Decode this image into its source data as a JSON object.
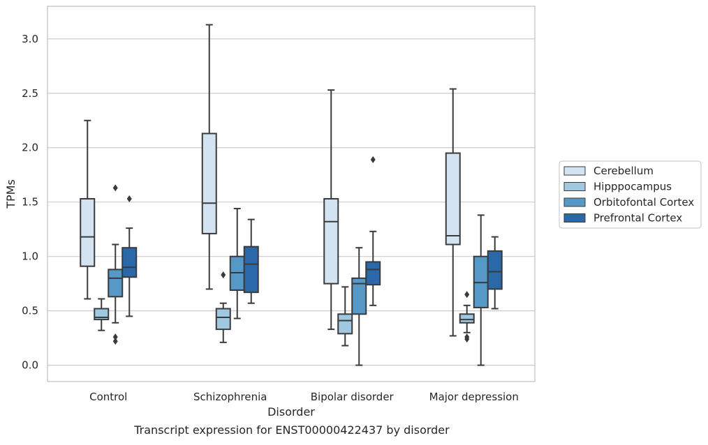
{
  "caption": "Transcript expression for ENST00000422437 by disorder",
  "chart_data": {
    "type": "boxplot",
    "xlabel": "Disorder",
    "ylabel": "TPMs",
    "ylim": [
      -0.15,
      3.3
    ],
    "yticks": [
      0.0,
      0.5,
      1.0,
      1.5,
      2.0,
      2.5,
      3.0
    ],
    "ytick_labels": [
      "0.0",
      "0.5",
      "1.0",
      "1.5",
      "2.0",
      "2.5",
      "3.0"
    ],
    "categories": [
      "Control",
      "Schizophrenia",
      "Bipolar disorder",
      "Major depression"
    ],
    "grid": "horizontal",
    "legend_position": "right",
    "series": [
      {
        "name": "Cerebellum",
        "color": "#d3e3f2",
        "boxes": [
          {
            "whislo": 0.61,
            "q1": 0.91,
            "med": 1.18,
            "q3": 1.53,
            "whishi": 2.25,
            "fliers": []
          },
          {
            "whislo": 0.7,
            "q1": 1.21,
            "med": 1.49,
            "q3": 2.13,
            "whishi": 3.13,
            "fliers": []
          },
          {
            "whislo": 0.33,
            "q1": 0.75,
            "med": 1.32,
            "q3": 1.53,
            "whishi": 2.53,
            "fliers": []
          },
          {
            "whislo": 0.27,
            "q1": 1.11,
            "med": 1.19,
            "q3": 1.95,
            "whishi": 2.54,
            "fliers": []
          }
        ]
      },
      {
        "name": "Hipppocampus",
        "color": "#a0c8e1",
        "boxes": [
          {
            "whislo": 0.32,
            "q1": 0.42,
            "med": 0.44,
            "q3": 0.52,
            "whishi": 0.61,
            "fliers": []
          },
          {
            "whislo": 0.21,
            "q1": 0.33,
            "med": 0.44,
            "q3": 0.52,
            "whishi": 0.57,
            "fliers": [
              0.83
            ]
          },
          {
            "whislo": 0.18,
            "q1": 0.29,
            "med": 0.41,
            "q3": 0.47,
            "whishi": 0.72,
            "fliers": []
          },
          {
            "whislo": 0.3,
            "q1": 0.39,
            "med": 0.42,
            "q3": 0.47,
            "whishi": 0.55,
            "fliers": [
              0.65,
              0.26,
              0.24
            ]
          }
        ]
      },
      {
        "name": "Orbitofontal Cortex",
        "color": "#5698c6",
        "boxes": [
          {
            "whislo": 0.39,
            "q1": 0.63,
            "med": 0.8,
            "q3": 0.88,
            "whishi": 1.11,
            "fliers": [
              1.63,
              0.26,
              0.22
            ]
          },
          {
            "whislo": 0.43,
            "q1": 0.69,
            "med": 0.85,
            "q3": 1.0,
            "whishi": 1.44,
            "fliers": []
          },
          {
            "whislo": 0.0,
            "q1": 0.47,
            "med": 0.75,
            "q3": 0.8,
            "whishi": 1.08,
            "fliers": []
          },
          {
            "whislo": 0.0,
            "q1": 0.53,
            "med": 0.76,
            "q3": 1.0,
            "whishi": 1.38,
            "fliers": []
          }
        ]
      },
      {
        "name": "Prefrontal Cortex",
        "color": "#2a68a9",
        "boxes": [
          {
            "whislo": 0.45,
            "q1": 0.81,
            "med": 0.9,
            "q3": 1.08,
            "whishi": 1.26,
            "fliers": [
              1.53
            ]
          },
          {
            "whislo": 0.57,
            "q1": 0.67,
            "med": 0.93,
            "q3": 1.09,
            "whishi": 1.34,
            "fliers": []
          },
          {
            "whislo": 0.55,
            "q1": 0.74,
            "med": 0.88,
            "q3": 0.95,
            "whishi": 1.23,
            "fliers": [
              1.89
            ]
          },
          {
            "whislo": 0.52,
            "q1": 0.7,
            "med": 0.86,
            "q3": 1.05,
            "whishi": 1.18,
            "fliers": []
          }
        ]
      }
    ]
  }
}
